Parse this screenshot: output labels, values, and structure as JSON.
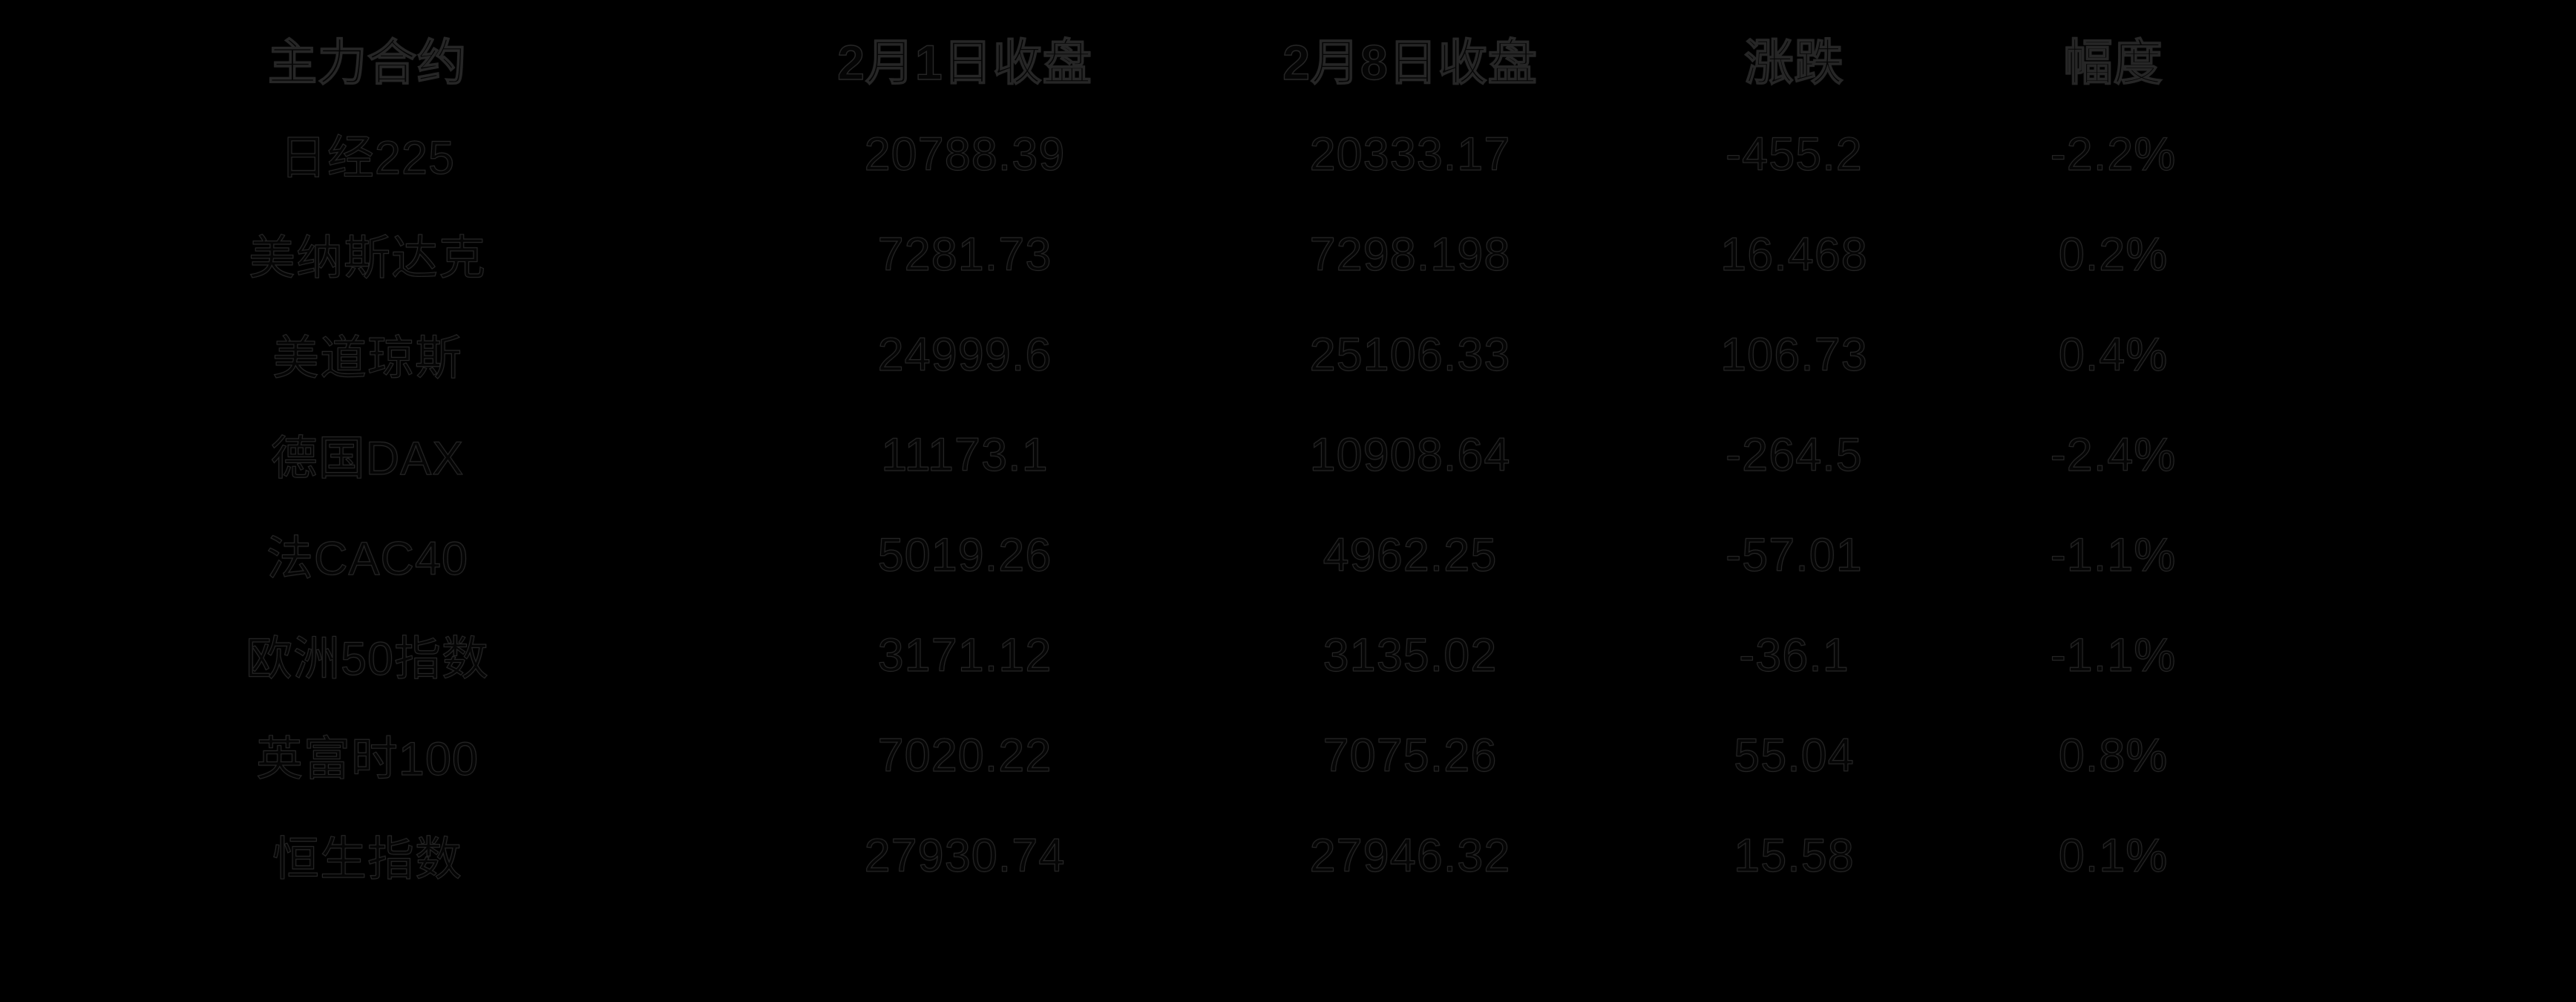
{
  "colors": {
    "background": "#000000",
    "text": "#050505",
    "text_edge": "#242424"
  },
  "chart_data": {
    "type": "table",
    "title": "",
    "columns": [
      "主力合约",
      "2月1日收盘",
      "2月8日收盘",
      "涨跌",
      "幅度"
    ],
    "rows": [
      [
        "日经225",
        "20788.39",
        "20333.17",
        "-455.2",
        "-2.2%"
      ],
      [
        "美纳斯达克",
        "7281.73",
        "7298.198",
        "16.468",
        "0.2%"
      ],
      [
        "美道琼斯",
        "24999.6",
        "25106.33",
        "106.73",
        "0.4%"
      ],
      [
        "德国DAX",
        "11173.1",
        "10908.64",
        "-264.5",
        "-2.4%"
      ],
      [
        "法CAC40",
        "5019.26",
        "4962.25",
        "-57.01",
        "-1.1%"
      ],
      [
        "欧洲50指数",
        "3171.12",
        "3135.02",
        "-36.1",
        "-1.1%"
      ],
      [
        "英富时100",
        "7020.22",
        "7075.26",
        "55.04",
        "0.8%"
      ],
      [
        "恒生指数",
        "27930.74",
        "27946.32",
        "15.58",
        "0.1%"
      ]
    ]
  }
}
